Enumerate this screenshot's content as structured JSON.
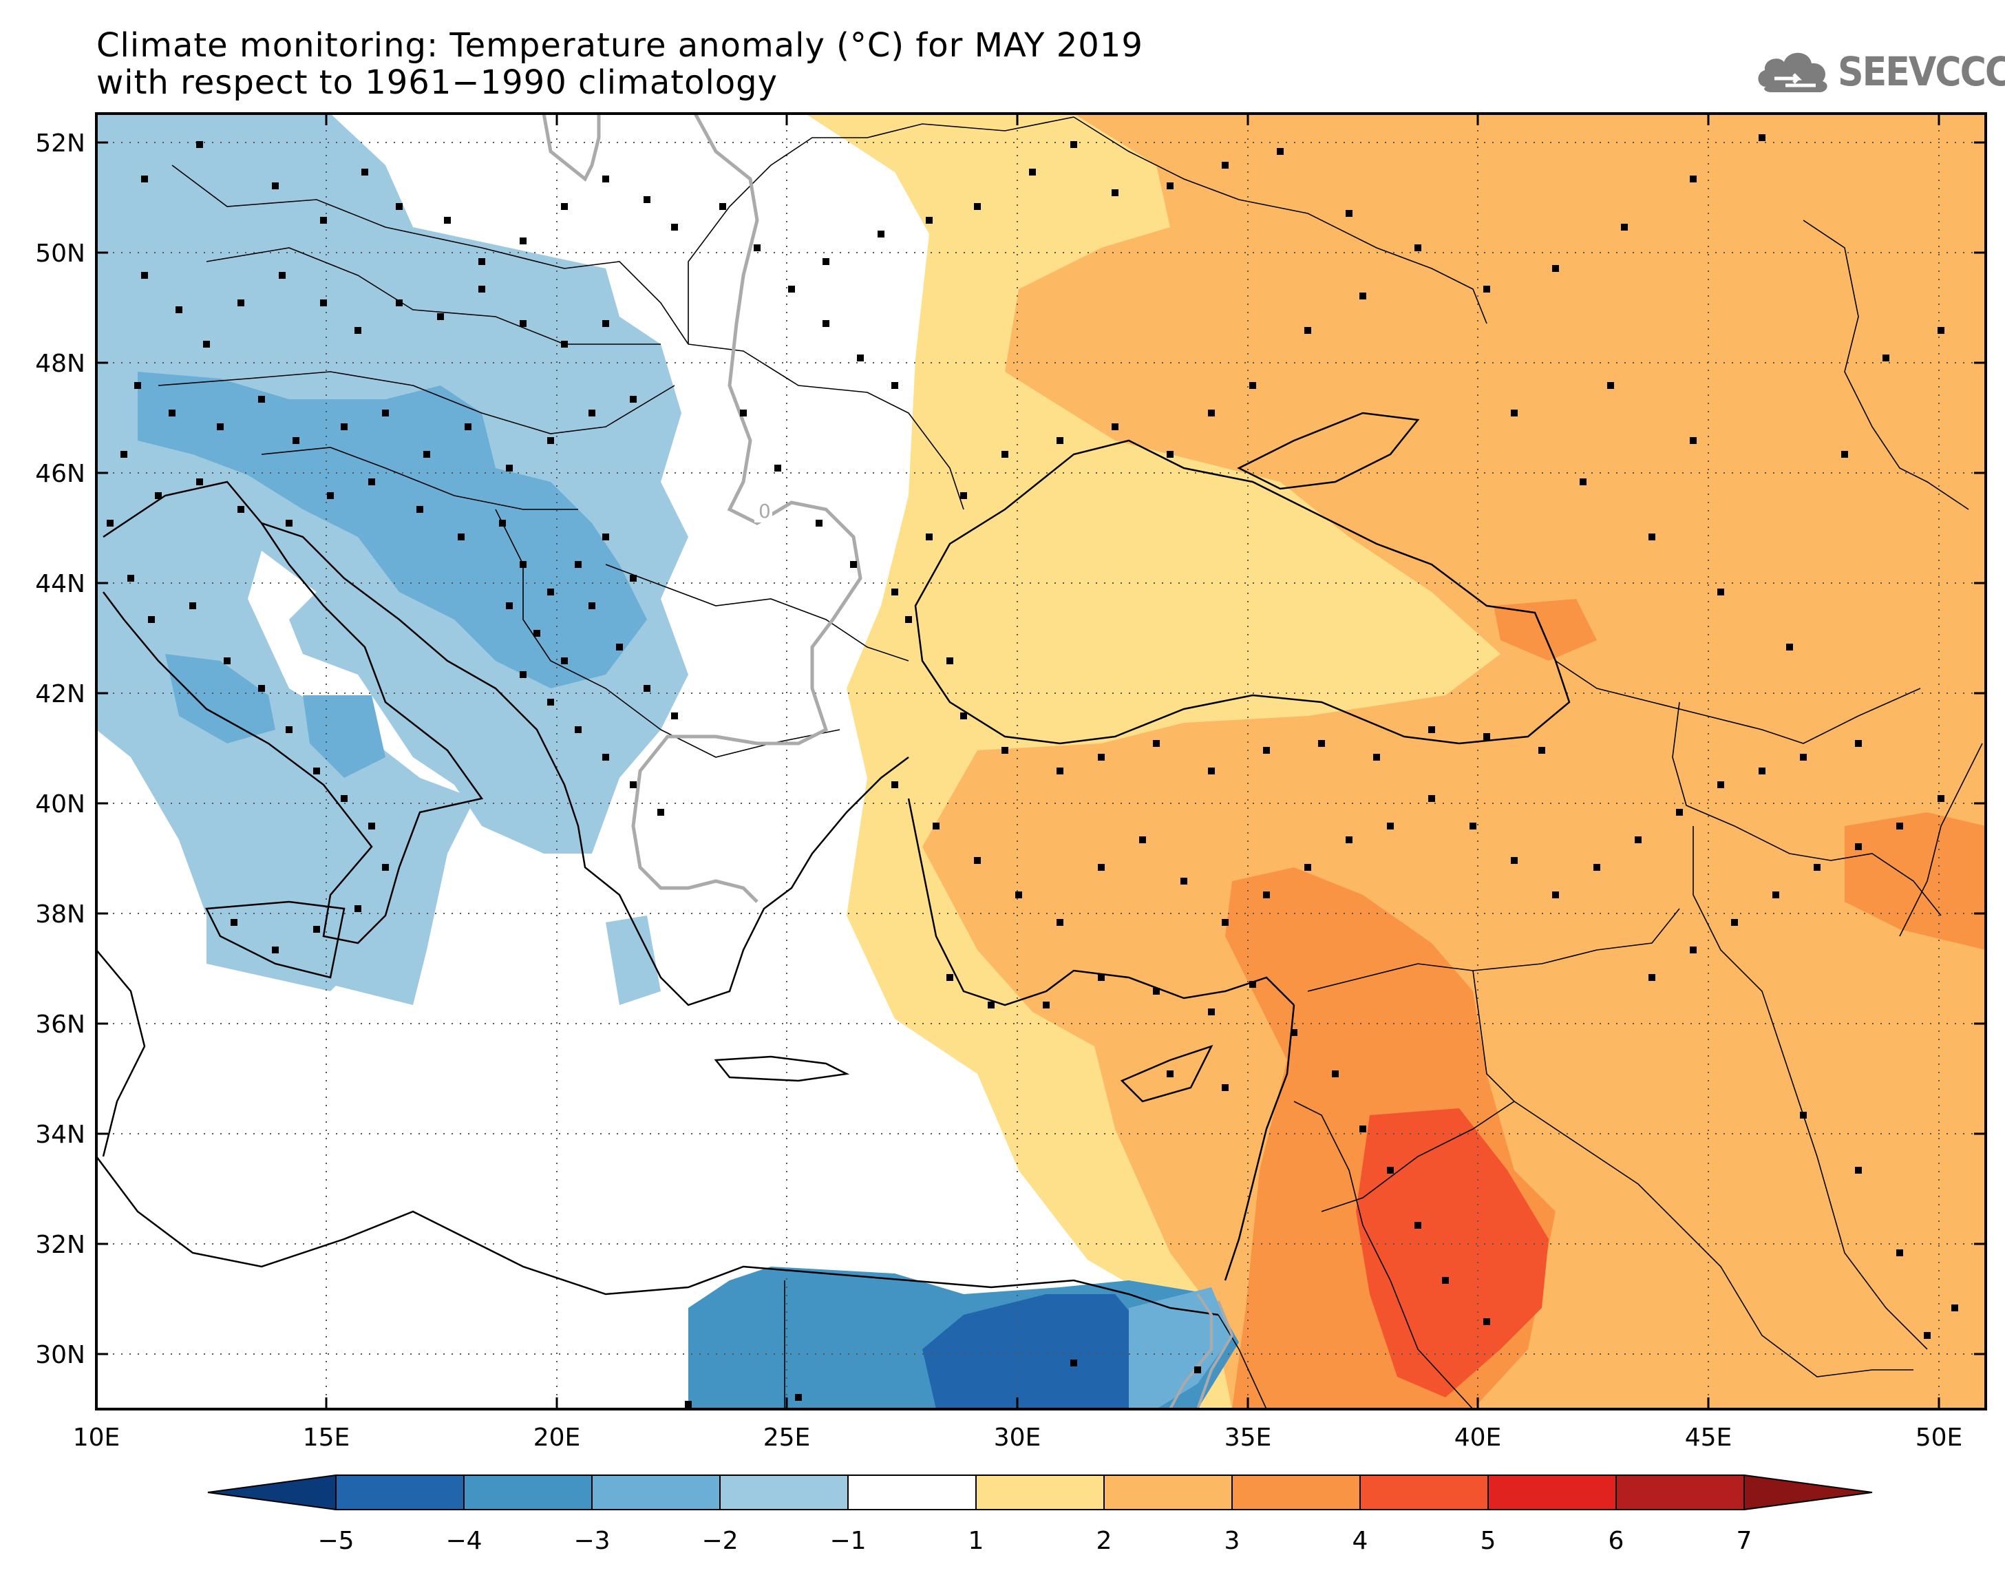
{
  "title": {
    "line1": "Climate monitoring: Temperature anomaly (°C) for MAY 2019",
    "line2": "with respect to 1961−1990 climatology"
  },
  "logo": {
    "text": "SEEVCCC",
    "icon": "cloud-icon"
  },
  "map": {
    "lon_range": [
      10,
      51
    ],
    "lat_range": [
      29,
      52.5
    ],
    "lon_ticks": [
      "10E",
      "15E",
      "20E",
      "25E",
      "30E",
      "35E",
      "40E",
      "45E",
      "50E"
    ],
    "lat_ticks": [
      "30N",
      "32N",
      "34N",
      "36N",
      "38N",
      "40N",
      "42N",
      "44N",
      "46N",
      "48N",
      "50N",
      "52N"
    ],
    "contour_label": "0",
    "grid": "dotted"
  },
  "colorbar": {
    "labels": [
      "−5",
      "−4",
      "−3",
      "−2",
      "−1",
      "1",
      "2",
      "3",
      "4",
      "5",
      "6",
      "7"
    ],
    "colors": [
      "#0b3a7a",
      "#2166ac",
      "#4393c3",
      "#6baed6",
      "#9ecae1",
      "#ffffff",
      "#fee08b",
      "#fdb863",
      "#f99445",
      "#f4542d",
      "#e1231f",
      "#b41e1e",
      "#8b1414"
    ]
  },
  "chart_data": {
    "type": "heatmap",
    "title": "Climate monitoring: Temperature anomaly (°C) for MAY 2019 with respect to 1961−1990 climatology",
    "xlim": [
      10,
      51
    ],
    "ylim": [
      29,
      52.5
    ],
    "color_levels": [
      -5,
      -4,
      -3,
      -2,
      -1,
      1,
      2,
      3,
      4,
      5,
      6,
      7
    ]
  }
}
